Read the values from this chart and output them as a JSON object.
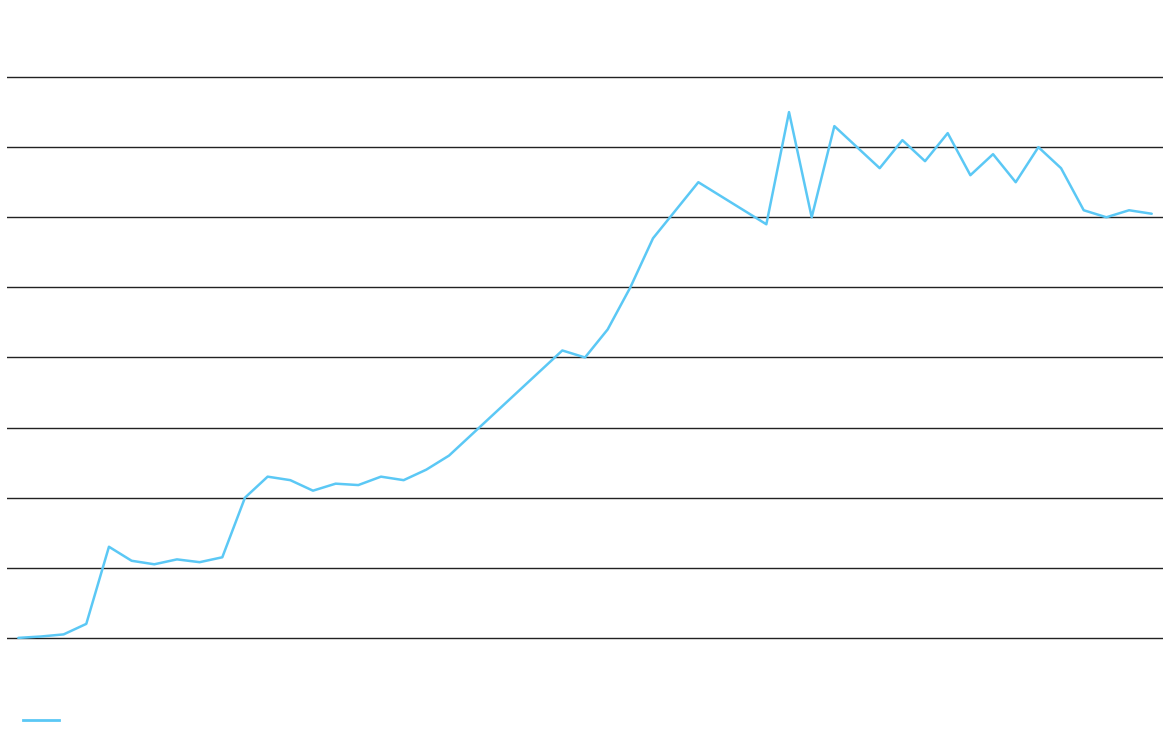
{
  "x": [
    0,
    1,
    2,
    3,
    4,
    5,
    6,
    7,
    8,
    9,
    10,
    11,
    12,
    13,
    14,
    15,
    16,
    17,
    18,
    19,
    20,
    21,
    22,
    23,
    24,
    25,
    26,
    27,
    28,
    29,
    30,
    31,
    32,
    33,
    34,
    35,
    36,
    37,
    38,
    39,
    40,
    41,
    42,
    43,
    44,
    45,
    46,
    47,
    48,
    49,
    50
  ],
  "y": [
    1.5,
    1.52,
    1.55,
    1.7,
    2.8,
    2.6,
    2.55,
    2.62,
    2.58,
    2.65,
    3.5,
    3.8,
    3.75,
    3.6,
    3.7,
    3.68,
    3.8,
    3.75,
    3.9,
    4.1,
    4.4,
    4.7,
    5.0,
    5.3,
    5.6,
    5.5,
    5.9,
    6.5,
    7.2,
    7.6,
    8.0,
    7.8,
    7.6,
    7.4,
    9.0,
    7.5,
    8.8,
    8.5,
    8.2,
    8.6,
    8.3,
    8.7,
    8.1,
    8.4,
    8.0,
    8.5,
    8.2,
    7.6,
    7.5,
    7.6,
    7.55
  ],
  "line_color": "#5bc8f5",
  "line_width": 1.8,
  "background_color": "#ffffff",
  "grid_color": "#222222",
  "grid_linewidth": 1.0,
  "ylim": [
    0,
    10.5
  ],
  "xlim": [
    -0.5,
    50.5
  ],
  "grid_y_positions": [
    1.5,
    2.5,
    3.5,
    4.5,
    5.5,
    6.5,
    7.5,
    8.5,
    9.5
  ],
  "figsize": [
    11.7,
    7.5
  ],
  "dpi": 100
}
